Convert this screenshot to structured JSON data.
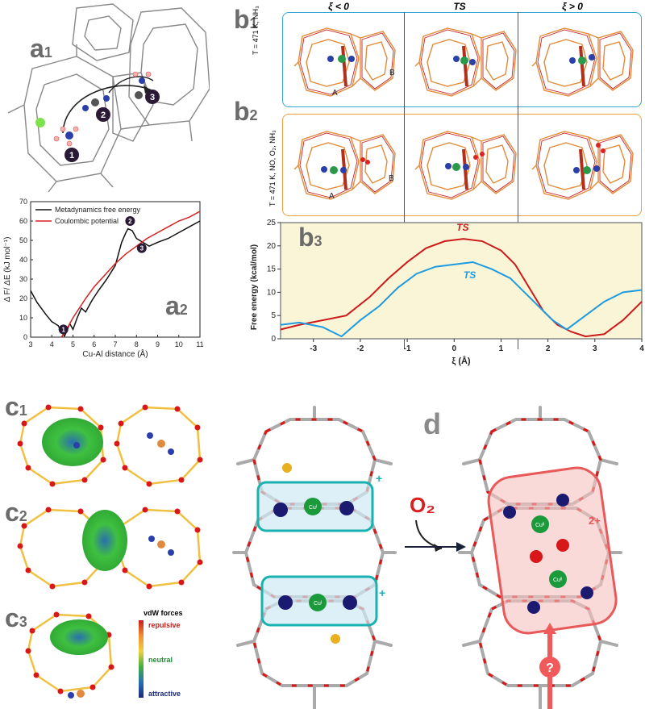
{
  "panel_labels": {
    "a1": "a",
    "a1_sub": "1",
    "a2": "a",
    "a2_sub": "2",
    "b1": "b",
    "b1_sub": "1",
    "b2": "b",
    "b2_sub": "2",
    "b3": "b",
    "b3_sub": "3",
    "c1": "c",
    "c1_sub": "1",
    "c2": "c",
    "c2_sub": "2",
    "c3": "c",
    "c3_sub": "3",
    "d": "d"
  },
  "a1": {
    "markers": [
      "1",
      "2",
      "3"
    ]
  },
  "a2": {
    "legend": [
      "Metadynamics free energy",
      "Coulombic potential"
    ],
    "markers": [
      "1",
      "2",
      "3"
    ]
  },
  "b_panels": {
    "col_headers": [
      "ξ < 0",
      "TS",
      "ξ > 0"
    ],
    "b1_side_label": "T = 471 K, NH₃",
    "b2_side_label": "T = 471 K, NO, O₂, NH₃",
    "cage_labels": [
      "A",
      "B"
    ]
  },
  "b3": {
    "curve_labels": [
      "TS",
      "TS"
    ]
  },
  "c3": {
    "legend_title": "vdW forces",
    "legend_labels": [
      "repulsive",
      "neutral",
      "attractive"
    ]
  },
  "d": {
    "oxygen_label": "O₂",
    "charge_left": "+",
    "charge_right": "2+",
    "cu_left": "Cuᴵ",
    "cu_right": "Cuᴵᴵ",
    "question": "?"
  },
  "colors": {
    "free_energy_black": "#111111",
    "coulombic_red": "#d62020",
    "b3_red": "#cc1a1a",
    "b3_blue": "#1e9be0",
    "b1_border": "#3aa6d0",
    "b2_border": "#f0a040",
    "b3_bg": "#fbf5d8"
  },
  "chart_data": [
    {
      "type": "line",
      "xlabel": "Cu-Al distance (Å)",
      "ylabel": "Δ F/ ΔE (kJ mol⁻¹)",
      "xlim": [
        3,
        11
      ],
      "ylim": [
        0,
        70
      ],
      "xticks": [
        "3",
        "4",
        "5",
        "6",
        "7",
        "8",
        "9",
        "10",
        "11"
      ],
      "yticks": [
        "0",
        "10",
        "20",
        "30",
        "40",
        "50",
        "60",
        "70"
      ],
      "legend_position": "top-left",
      "series": [
        {
          "name": "Metadynamics free energy",
          "color": "#111111",
          "x": [
            3.0,
            3.3,
            3.7,
            4.0,
            4.3,
            4.5,
            4.6,
            4.7,
            4.85,
            5.0,
            5.2,
            5.4,
            5.6,
            5.9,
            6.2,
            6.6,
            7.0,
            7.3,
            7.5,
            7.6,
            7.8,
            8.0,
            8.3,
            8.6,
            9.0,
            9.5,
            10.0,
            10.5,
            11.0
          ],
          "y": [
            24,
            18,
            12,
            8,
            6,
            2,
            0.5,
            3,
            7,
            4,
            10,
            15,
            13,
            19,
            24,
            30,
            37,
            49,
            54,
            56,
            55,
            51,
            49,
            47,
            49,
            51,
            54,
            57,
            60
          ]
        },
        {
          "name": "Coulombic potential",
          "color": "#d62020",
          "x": [
            4.45,
            4.6,
            4.8,
            5.0,
            5.3,
            5.6,
            6.0,
            6.5,
            7.0,
            7.5,
            8.0,
            8.5,
            9.0,
            9.5,
            10.0,
            10.5,
            11.0
          ],
          "y": [
            0,
            2,
            6,
            10,
            15,
            20,
            26,
            32,
            38,
            43,
            47,
            51,
            54,
            57,
            60,
            62,
            65
          ]
        }
      ]
    },
    {
      "type": "line",
      "xlabel": "ξ (Å)",
      "ylabel": "Free energy (kcal/mol)",
      "xlim": [
        -3.7,
        4
      ],
      "ylim": [
        0,
        25
      ],
      "xticks": [
        "-3",
        "-2",
        "-1",
        "0",
        "1",
        "2",
        "3",
        "4"
      ],
      "yticks": [
        "0",
        "5",
        "10",
        "15",
        "20",
        "25"
      ],
      "series": [
        {
          "color": "#cc1a1a",
          "x": [
            -3.7,
            -3.3,
            -2.8,
            -2.3,
            -1.8,
            -1.4,
            -1.0,
            -0.6,
            -0.2,
            0.2,
            0.6,
            1.0,
            1.3,
            1.6,
            1.9,
            2.2,
            2.5,
            2.8,
            3.2,
            3.6,
            4.0
          ],
          "y": [
            2,
            3,
            4,
            5,
            9,
            13,
            16.5,
            19.5,
            21,
            21.5,
            21,
            19,
            16,
            11,
            6,
            3,
            1.5,
            0.5,
            1,
            4,
            8
          ]
        },
        {
          "color": "#1e9be0",
          "x": [
            -3.7,
            -3.3,
            -2.8,
            -2.4,
            -2.0,
            -1.6,
            -1.2,
            -0.8,
            -0.4,
            0.0,
            0.4,
            0.8,
            1.2,
            1.5,
            1.8,
            2.1,
            2.4,
            2.8,
            3.2,
            3.6,
            4.0
          ],
          "y": [
            3,
            3.5,
            2.5,
            0.5,
            4,
            7,
            11,
            14,
            15.5,
            16,
            16.5,
            15,
            13,
            10,
            7,
            4,
            2,
            5,
            8,
            10,
            10.5
          ]
        }
      ]
    }
  ]
}
